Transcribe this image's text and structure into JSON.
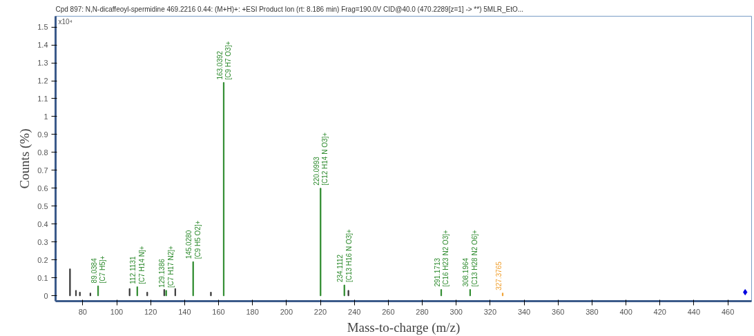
{
  "chart_data": {
    "type": "bar",
    "title": "Cpd 897: N,N-dicaffeoyl-spermidine 469.2216 0.44: (M+H)+: +ESI Product Ion (rt: 8.186 min) Frag=190.0V CID@40.0 (470.2289[z=1] -> **) 5MLR_EtO...",
    "xlabel": "Mass-to-charge (m/z)",
    "ylabel": "Counts (%)",
    "xlim": [
      64,
      474
    ],
    "xticks": [
      80,
      100,
      120,
      140,
      160,
      180,
      200,
      220,
      240,
      260,
      280,
      300,
      320,
      340,
      360,
      380,
      400,
      420,
      440,
      460
    ],
    "ylim": [
      -0.03,
      1.56
    ],
    "yticks": [
      0,
      0.1,
      0.2,
      0.3,
      0.4,
      0.5,
      0.6,
      0.7,
      0.8,
      0.9,
      1,
      1.1,
      1.2,
      1.3,
      1.4,
      1.5
    ],
    "grid": false,
    "series": [
      {
        "color": "#3a3a3a",
        "x": [
          72.5,
          76,
          78.3,
          84.5,
          107.6,
          118,
          128,
          134.5,
          155.5,
          236.5
        ],
        "values": [
          0.15,
          0.03,
          0.02,
          0.015,
          0.04,
          0.02,
          0.035,
          0.04,
          0.02,
          0.03
        ]
      },
      {
        "color": "#2e8b2e",
        "x": [
          89.0384,
          112.1131,
          129.1386,
          145.028,
          163.0392,
          220.0993,
          234.1112,
          291.1713,
          308.1964
        ],
        "values": [
          0.055,
          0.05,
          0.03,
          0.19,
          1.19,
          0.6,
          0.06,
          0.035,
          0.035
        ]
      },
      {
        "color": "#f0a030",
        "x": [
          327.3765
        ],
        "values": [
          0.015
        ]
      },
      {
        "type": "scatter",
        "marker": "diamond",
        "color": "#0000e0",
        "x": [
          470.2289
        ],
        "values": [
          0.02
        ]
      }
    ],
    "annotations": [
      "x10⁴",
      {
        "text": "89.0384",
        "x": 89.0384,
        "y": 0.055
      },
      {
        "text": "[C7 H5]+",
        "x": 89.0384,
        "y": 0.055
      },
      {
        "text": "112.1131",
        "x": 112.1131,
        "y": 0.05
      },
      {
        "text": "[C7 H14 N]+",
        "x": 112.1131,
        "y": 0.05
      },
      {
        "text": "129.1386",
        "x": 129.1386,
        "y": 0.03
      },
      {
        "text": "[C7 H17 N2]+",
        "x": 129.1386,
        "y": 0.03
      },
      {
        "text": "145.0280",
        "x": 145.028,
        "y": 0.19
      },
      {
        "text": "[C9 H5 O2]+",
        "x": 145.028,
        "y": 0.19
      },
      {
        "text": "163.0392",
        "x": 163.0392,
        "y": 1.19
      },
      {
        "text": "[C9 H7 O3]+",
        "x": 163.0392,
        "y": 1.19
      },
      {
        "text": "220.0993",
        "x": 220.0993,
        "y": 0.6
      },
      {
        "text": "[C12 H14 N O3]+",
        "x": 220.0993,
        "y": 0.6
      },
      {
        "text": "234.1112",
        "x": 234.1112,
        "y": 0.06
      },
      {
        "text": "[C13 H16 N O3]+",
        "x": 234.1112,
        "y": 0.06
      },
      {
        "text": "291.1713",
        "x": 291.1713,
        "y": 0.035
      },
      {
        "text": "[C16 H23 N2 O3]+",
        "x": 291.1713,
        "y": 0.035
      },
      {
        "text": "308.1964",
        "x": 308.1964,
        "y": 0.035
      },
      {
        "text": "[C13 H28 N2 O6]+",
        "x": 308.1964,
        "y": 0.035
      },
      {
        "text": "327.3765",
        "x": 327.3765,
        "y": 0.015
      }
    ]
  }
}
